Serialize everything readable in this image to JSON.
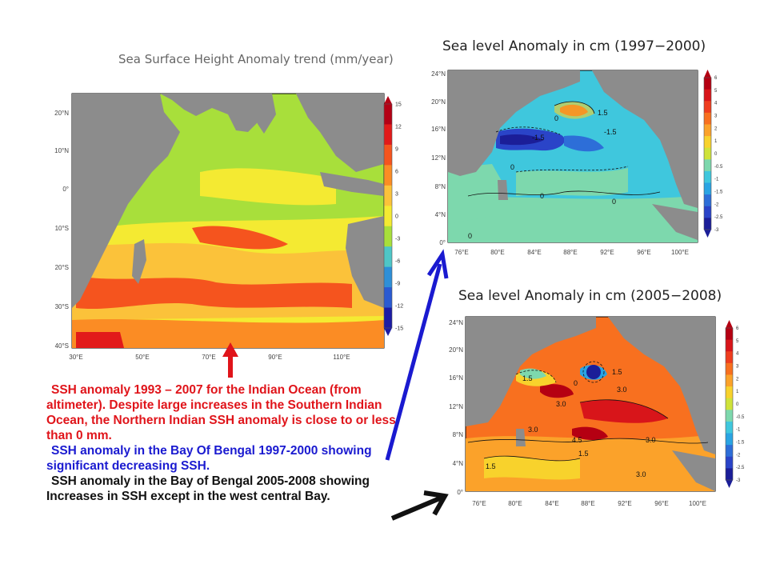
{
  "chart_data": [
    {
      "type": "heatmap",
      "title": "Sea Surface Height Anomaly trend (mm/year)",
      "lat_labels": [
        "20°N",
        "10°N",
        "0°",
        "10°S",
        "20°S",
        "30°S",
        "40°S"
      ],
      "lon_labels": [
        "30°E",
        "50°E",
        "70°E",
        "90°E",
        "110°E"
      ],
      "colorbar": {
        "ticks": [
          "15",
          "12",
          "9",
          "6",
          "3",
          "0",
          "-3",
          "-6",
          "-9",
          "-12",
          "-15"
        ],
        "colors": [
          "#b40015",
          "#e21a1a",
          "#f5541e",
          "#fb8c24",
          "#fbc23a",
          "#f4ea32",
          "#a8df3b",
          "#4ec6c7",
          "#2e8fd7",
          "#2a5ad2",
          "#1c1ca4"
        ]
      },
      "land_color": "#8c8c8c"
    },
    {
      "type": "heatmap",
      "title": "Sea level Anomaly in cm (1997−2000)",
      "lat_labels": [
        "24°N",
        "20°N",
        "16°N",
        "12°N",
        "8°N",
        "4°N",
        "0°"
      ],
      "lon_labels": [
        "76°E",
        "80°E",
        "84°E",
        "88°E",
        "92°E",
        "96°E",
        "100°E"
      ],
      "contour_labels": [
        "1.5",
        "0",
        "-1.5",
        "0",
        "0",
        "0",
        "0",
        "-1.5"
      ],
      "colorbar": {
        "ticks": [
          "6",
          "5",
          "4",
          "3",
          "2",
          "1",
          "0",
          "-0.5",
          "-1",
          "-1.5",
          "-2",
          "-2.5",
          "-3"
        ],
        "colors": [
          "#b50012",
          "#d8151a",
          "#ef3d1f",
          "#f8701f",
          "#fba22a",
          "#f8d22c",
          "#cfe33a",
          "#7dd8ad",
          "#3fc7dd",
          "#2aa4e3",
          "#2d6ed8",
          "#2a44c8",
          "#1b1e98"
        ]
      },
      "land_color": "#8c8c8c"
    },
    {
      "type": "heatmap",
      "title": "Sea level Anomaly in cm (2005−2008)",
      "lat_labels": [
        "24°N",
        "20°N",
        "16°N",
        "12°N",
        "8°N",
        "4°N",
        "0°"
      ],
      "lon_labels": [
        "76°E",
        "80°E",
        "84°E",
        "88°E",
        "92°E",
        "96°E",
        "100°E"
      ],
      "contour_labels": [
        "1.5",
        "0",
        "1.5",
        "3.0",
        "3.0",
        "3.0",
        "4.5",
        "1.5",
        "1.5",
        "3.0",
        "3.0"
      ],
      "colorbar": {
        "ticks": [
          "6",
          "5",
          "4",
          "3",
          "2",
          "1",
          "0",
          "-0.5",
          "-1",
          "-1.5",
          "-2",
          "-2.5",
          "-3"
        ],
        "colors": [
          "#b50012",
          "#d8151a",
          "#ef3d1f",
          "#f8701f",
          "#fba22a",
          "#f8d22c",
          "#cfe33a",
          "#7dd8ad",
          "#3fc7dd",
          "#2aa4e3",
          "#2d6ed8",
          "#2a44c8",
          "#1b1e98"
        ]
      },
      "land_color": "#8c8c8c"
    }
  ],
  "caption": {
    "para1": "SSH anomaly 1993 – 2007 for the Indian Ocean (from altimeter).  Despite large increases in the Southern Indian Ocean, the Northern Indian SSH anomaly is close to or less than 0 mm.",
    "para2": "SSH anomaly in the Bay Of Bengal 1997-2000 showing significant decreasing SSH.",
    "para3": "SSH anomaly in the Bay of Bengal 2005-2008 showing Increases in SSH except in the west central Bay."
  },
  "arrows": {
    "red": "#e0141a",
    "blue": "#1a1ad0",
    "black": "#111111"
  }
}
